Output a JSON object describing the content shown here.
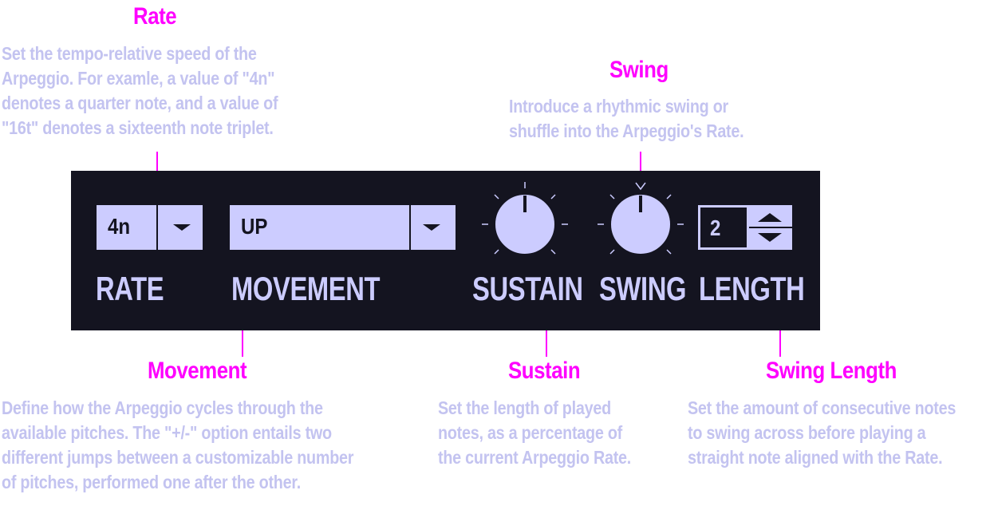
{
  "callouts": {
    "rate": {
      "title": "Rate",
      "lines": [
        "Set the tempo-relative speed of the",
        "Arpeggio. For examle, a value of \"4n\"",
        "denotes a quarter note, and a value of",
        "\"16t\" denotes a sixteenth note triplet."
      ]
    },
    "swing": {
      "title": "Swing",
      "lines": [
        "Introduce a rhythmic swing or",
        "shuffle into the Arpeggio's Rate."
      ]
    },
    "movement": {
      "title": "Movement",
      "lines": [
        "Define how the Arpeggio cycles through the",
        "available pitches. The \"+/-\" option entails two",
        "different jumps between a customizable number",
        "of pitches, performed one after the other."
      ]
    },
    "sustain": {
      "title": "Sustain",
      "lines": [
        "Set the length of played",
        "notes, as a percentage of",
        "the current Arpeggio Rate."
      ]
    },
    "swing_length": {
      "title": "Swing Length",
      "lines": [
        "Set the amount of consecutive notes",
        "to swing across before playing a",
        "straight note aligned with the Rate."
      ]
    }
  },
  "panel": {
    "rate_value": "4n",
    "rate_label": "RATE",
    "movement_value": "UP",
    "movement_label": "MOVEMENT",
    "sustain_label": "SUSTAIN",
    "sustain_level": 0.5,
    "swing_label": "SWING",
    "swing_level": 0.5,
    "length_value": "2",
    "length_label": "LENGTH"
  },
  "colors": {
    "title": "#ff00ff",
    "description": "#c3c3f0",
    "panel_bg": "#141420",
    "control": "#ccccff"
  },
  "icons": [
    "chevron-down-icon",
    "chevron-up-icon"
  ]
}
